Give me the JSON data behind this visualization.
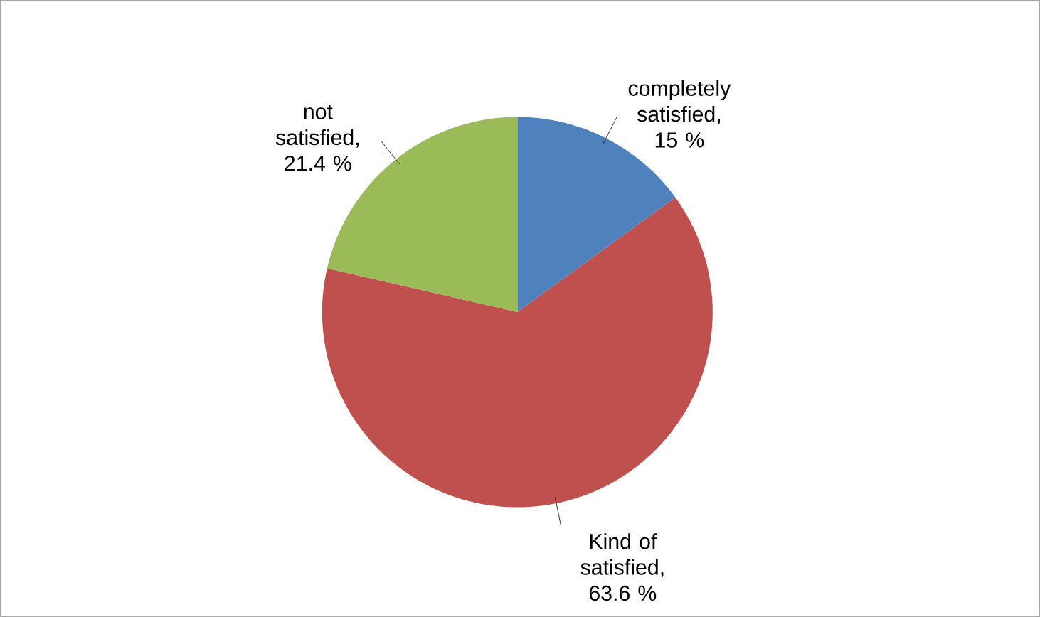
{
  "chart_data": {
    "type": "pie",
    "categories": [
      "completely satisfied",
      "Kind of satisfied",
      "not satisfied"
    ],
    "values": [
      15,
      63.6,
      21.4
    ],
    "value_labels": [
      ", 15 %",
      ", 63.6 %",
      ", 21.4 %"
    ],
    "colors": [
      "#4f81bd",
      "#c0504d",
      "#9bbb59"
    ]
  }
}
